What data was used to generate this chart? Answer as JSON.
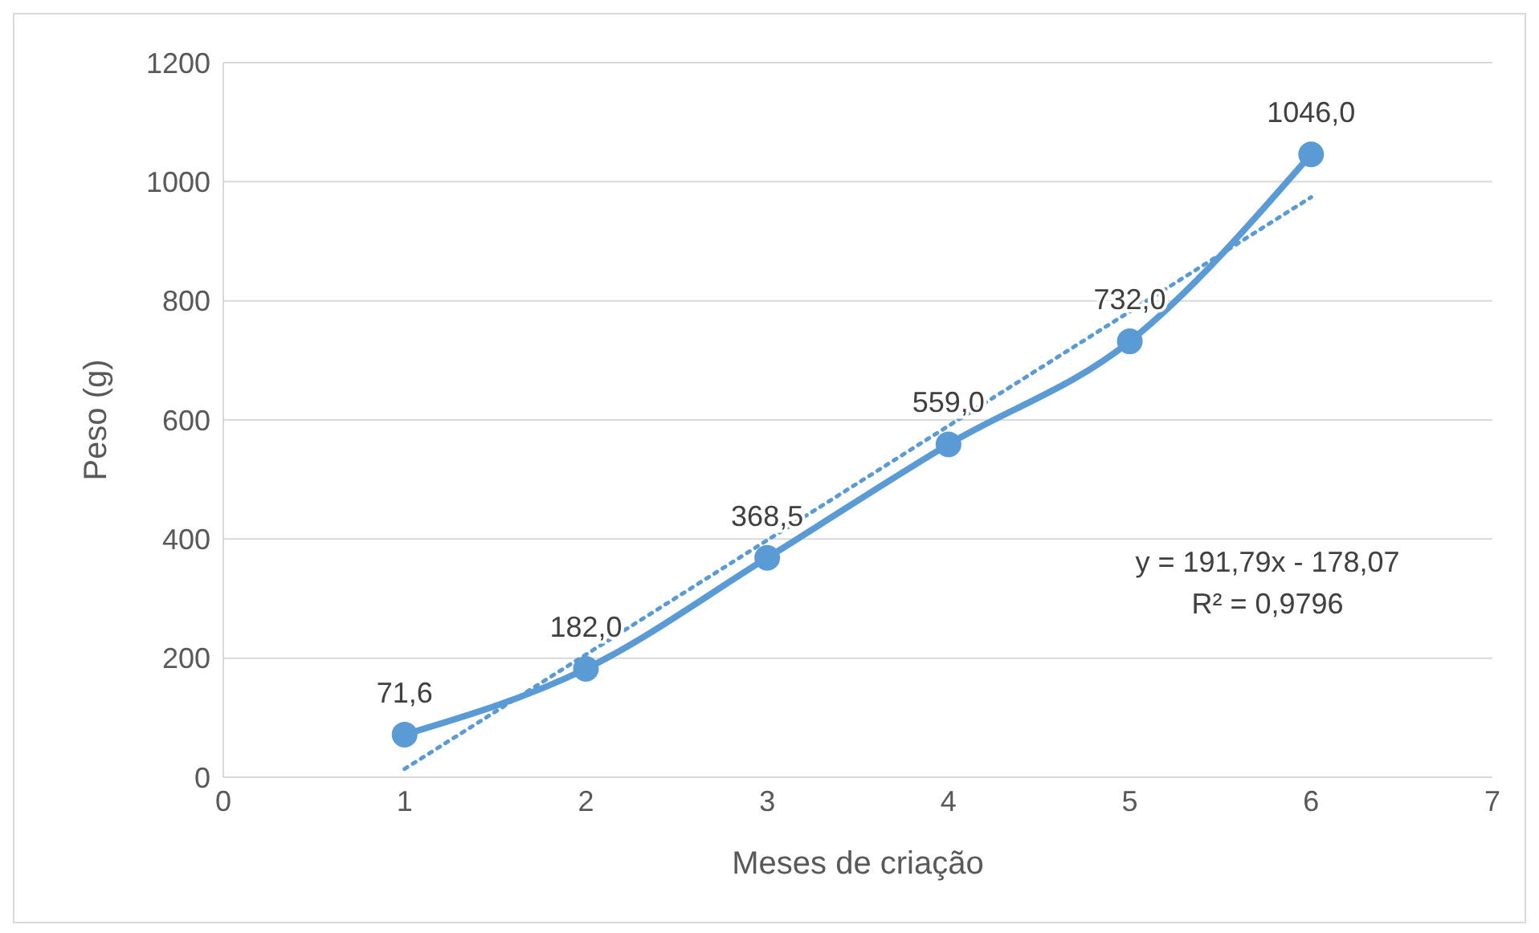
{
  "chart_data": {
    "type": "line",
    "xlabel": "Meses de criação",
    "ylabel": "Peso (g)",
    "x": [
      1,
      2,
      3,
      4,
      5,
      6
    ],
    "series": [
      {
        "color": "#5b9bd5",
        "values": [
          71.6,
          182.0,
          368.5,
          559.0,
          732.0,
          1046.0
        ],
        "value_labels": [
          "71,6",
          "182,0",
          "368,5",
          "559,0",
          "732,0",
          "1046,0"
        ],
        "marker": "circle",
        "line_style": "solid"
      },
      {
        "type": "line",
        "color": "#5b9bd5",
        "x": [
          1,
          6
        ],
        "values": [
          14,
          974
        ],
        "marker": "none",
        "line_style": "dotted"
      }
    ],
    "xlim": [
      0,
      7
    ],
    "xticks": [
      0,
      1,
      2,
      3,
      4,
      5,
      6,
      7
    ],
    "ylim": [
      0,
      1200
    ],
    "yticks": [
      0,
      200,
      400,
      600,
      800,
      1000,
      1200
    ],
    "grid": "y",
    "annotations": [
      "y = 191,79x - 178,07",
      "R² = 0,9796"
    ]
  }
}
